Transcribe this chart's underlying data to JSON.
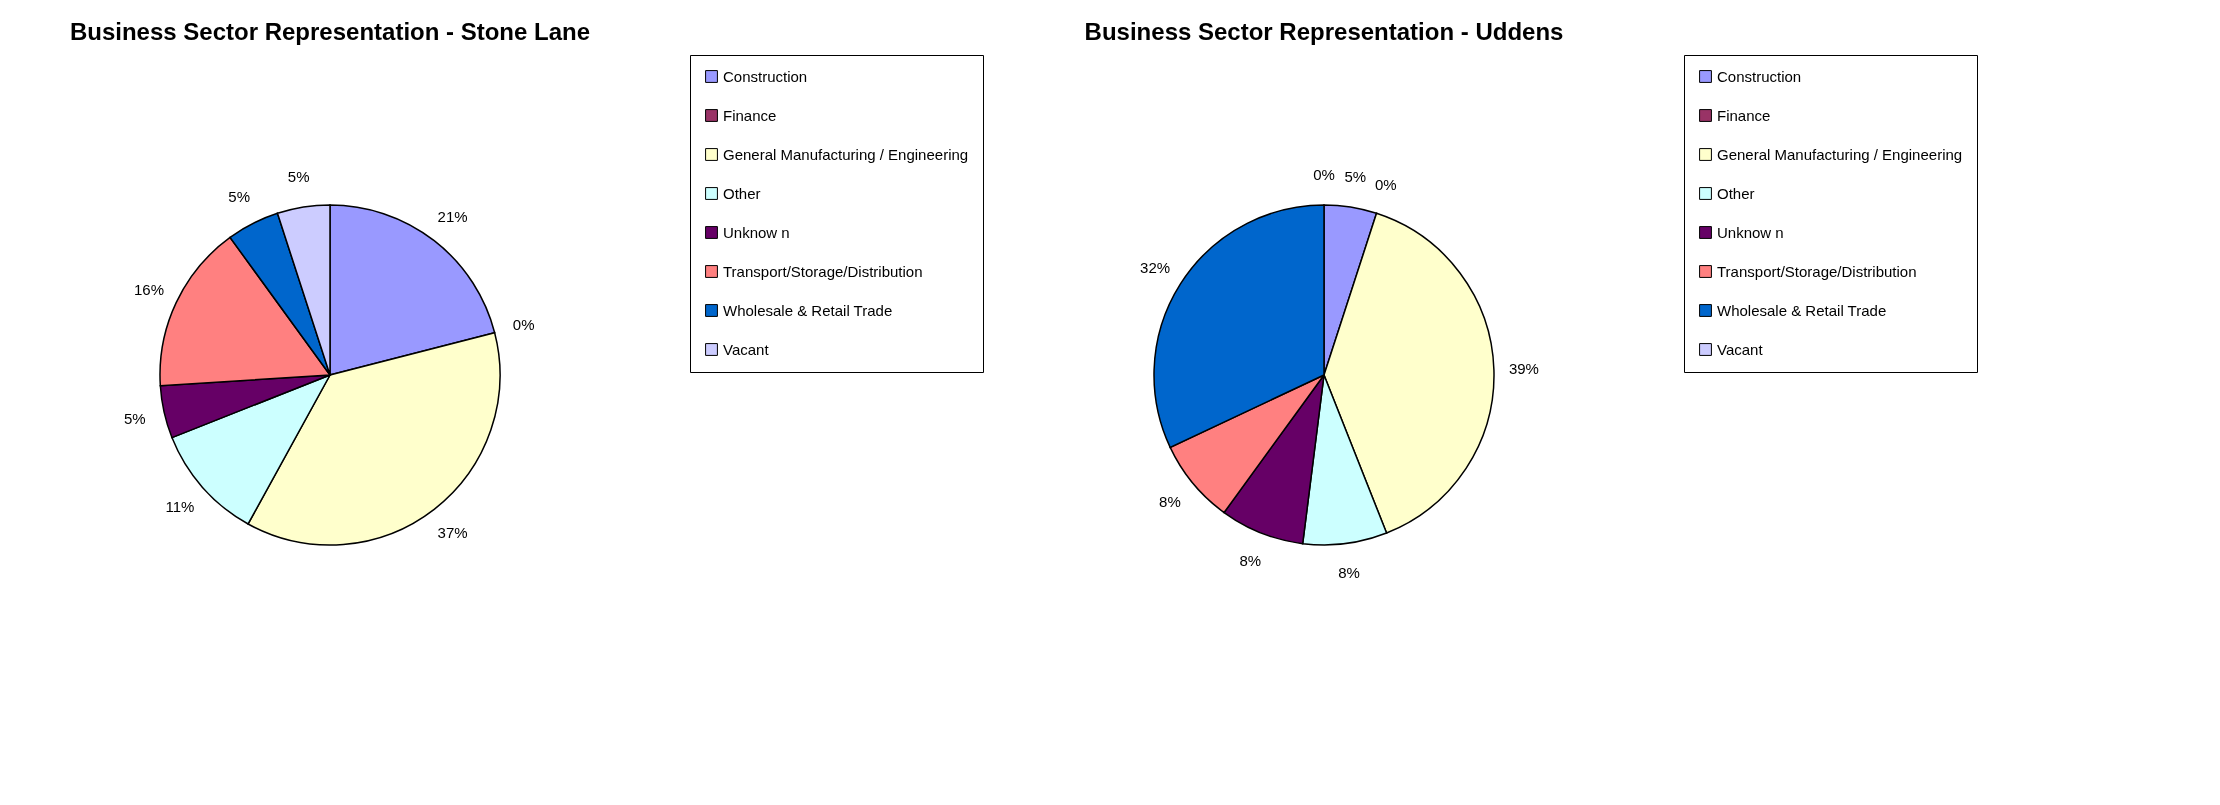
{
  "chart_data": [
    {
      "type": "pie",
      "title": "Business Sector Representation - Stone Lane",
      "categories": [
        "Construction",
        "Finance",
        "General Manufacturing / Engineering",
        "Other",
        "Unknow n",
        "Transport/Storage/Distribution",
        "Wholesale & Retail Trade",
        "Vacant"
      ],
      "values": [
        21,
        0,
        37,
        11,
        5,
        16,
        5,
        5
      ],
      "value_labels": [
        "21%",
        "0%",
        "37%",
        "11%",
        "5%",
        "16%",
        "5%",
        "5%"
      ],
      "colors": [
        "#9999ff",
        "#993366",
        "#ffffcc",
        "#ccffff",
        "#660066",
        "#ff8080",
        "#0066cc",
        "#ccccff"
      ],
      "legend": "right"
    },
    {
      "type": "pie",
      "title": "Business Sector Representation - Uddens",
      "categories": [
        "Construction",
        "Finance",
        "General Manufacturing / Engineering",
        "Other",
        "Unknow n",
        "Transport/Storage/Distribution",
        "Wholesale & Retail Trade",
        "Vacant"
      ],
      "values": [
        5,
        0,
        39,
        8,
        8,
        8,
        32,
        0
      ],
      "value_labels": [
        "5%",
        "0%",
        "39%",
        "8%",
        "8%",
        "8%",
        "32%",
        "0%"
      ],
      "colors": [
        "#9999ff",
        "#993366",
        "#ffffcc",
        "#ccffff",
        "#660066",
        "#ff8080",
        "#0066cc",
        "#ccccff"
      ],
      "legend": "right"
    }
  ]
}
